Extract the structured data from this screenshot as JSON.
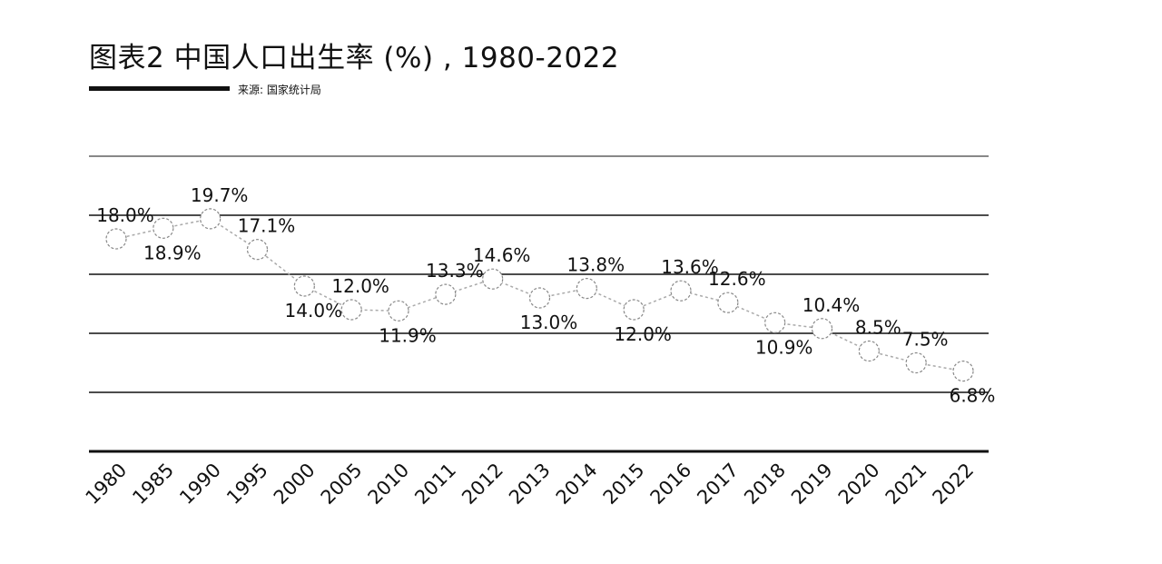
{
  "header": {
    "title": "图表2 中国人口出生率 (%) , 1980-2022",
    "source": "来源: 国家统计局"
  },
  "chart_data": {
    "type": "line",
    "title": "图表2 中国人口出生率 (%) , 1980-2022",
    "xlabel": "",
    "ylabel": "",
    "categories": [
      "1980",
      "1985",
      "1990",
      "1995",
      "2000",
      "2005",
      "2010",
      "2011",
      "2012",
      "2013",
      "2014",
      "2015",
      "2016",
      "2017",
      "2018",
      "2019",
      "2020",
      "2021",
      "2022"
    ],
    "series": [
      {
        "values": [
          18.0,
          18.9,
          19.7,
          17.1,
          14.0,
          12.0,
          11.9,
          13.3,
          14.6,
          13.0,
          13.8,
          12.0,
          13.6,
          12.6,
          10.9,
          10.4,
          8.5,
          7.5,
          6.8
        ]
      }
    ],
    "data_labels": [
      "18.0%",
      "18.9%",
      "19.7%",
      "17.1%",
      "14.0%",
      "12.0%",
      "11.9%",
      "13.3%",
      "14.6%",
      "13.0%",
      "13.8%",
      "12.0%",
      "13.6%",
      "12.6%",
      "10.9%",
      "10.4%",
      "8.5%",
      "7.5%",
      "6.8%"
    ],
    "label_positions": [
      "above",
      "below",
      "above",
      "above",
      "below",
      "above",
      "below",
      "above",
      "above",
      "below",
      "above",
      "below",
      "above",
      "above",
      "below",
      "above",
      "above",
      "above",
      "below"
    ],
    "ylim": [
      0,
      25
    ],
    "gridlines": [
      5,
      10,
      15,
      20
    ],
    "grid": true,
    "legend": "none",
    "colors": {
      "line": "#aaaaaa",
      "marker": "#888888",
      "grid": "#111111",
      "text": "#111111"
    }
  }
}
